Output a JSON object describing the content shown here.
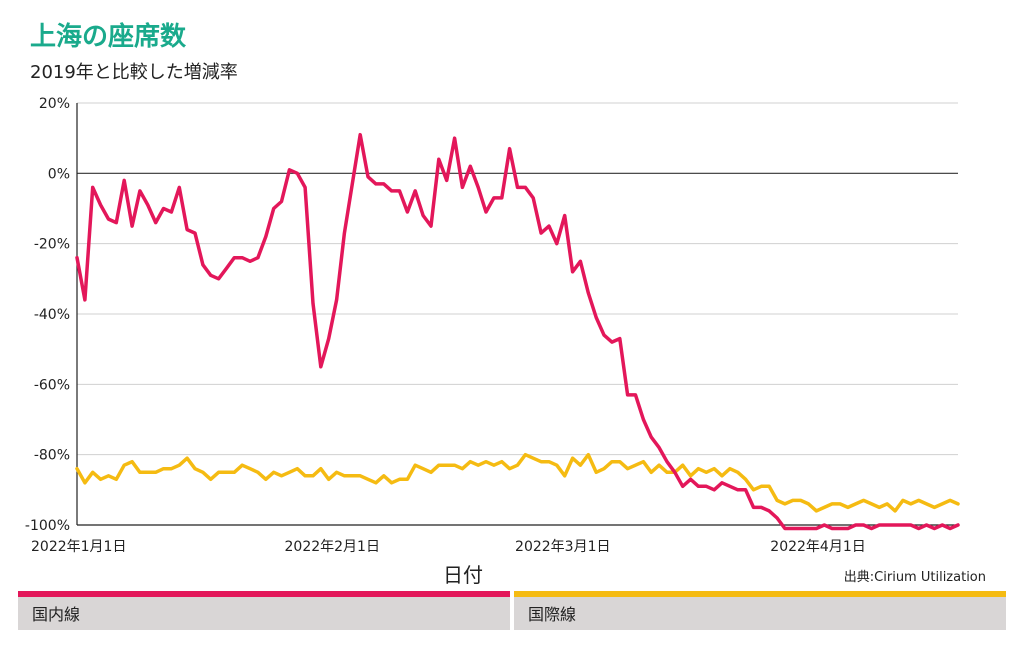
{
  "title": "上海の座席数",
  "subtitle": "2019年と比較した増減率",
  "source": "出典:Cirium Utilization",
  "colors": {
    "title": "#1aaa8c",
    "domestic": "#e3175a",
    "international": "#f5bb12",
    "legend_bg": "#d9d6d6"
  },
  "chart_data": {
    "type": "line",
    "xlabel": "日付",
    "ylabel": "",
    "ylim": [
      -100,
      20
    ],
    "yticks": [
      20,
      0,
      -20,
      -40,
      -60,
      -80,
      -100
    ],
    "ytick_labels": [
      "20%",
      "0%",
      "-20%",
      "-40%",
      "-60%",
      "-80%",
      "-100%"
    ],
    "x_start": "2022-01-01",
    "x_end": "2022-04-18",
    "xticks": [
      {
        "date": "2022-01-01",
        "label": "2022年1月1日"
      },
      {
        "date": "2022-02-01",
        "label": "2022年2月1日"
      },
      {
        "date": "2022-03-01",
        "label": "2022年3月1日"
      },
      {
        "date": "2022-04-01",
        "label": "2022年4月1日"
      }
    ],
    "grid": true,
    "series": [
      {
        "name": "国内線",
        "color": "#e3175a",
        "values": [
          -24,
          -36,
          -4,
          -9,
          -13,
          -14,
          -2,
          -15,
          -5,
          -9,
          -14,
          -10,
          -11,
          -4,
          -16,
          -17,
          -26,
          -29,
          -30,
          -27,
          -24,
          -24,
          -25,
          -24,
          -18,
          -10,
          -8,
          1,
          0,
          -4,
          -37,
          -55,
          -47,
          -36,
          -17,
          -3,
          11,
          -1,
          -3,
          -3,
          -5,
          -5,
          -11,
          -5,
          -12,
          -15,
          4,
          -2,
          10,
          -4,
          2,
          -4,
          -11,
          -7,
          -7,
          7,
          -4,
          -4,
          -7,
          -17,
          -15,
          -20,
          -12,
          -28,
          -25,
          -34,
          -41,
          -46,
          -48,
          -47,
          -63,
          -63,
          -70,
          -75,
          -78,
          -82,
          -85,
          -89,
          -87,
          -89,
          -89,
          -90,
          -88,
          -89,
          -90,
          -90,
          -95,
          -95,
          -96,
          -98,
          -101,
          -101,
          -101,
          -101,
          -101,
          -100,
          -101,
          -101,
          -101,
          -100,
          -100,
          -101,
          -100,
          -100,
          -100,
          -100,
          -100,
          -101,
          -100,
          -101,
          -100,
          -101,
          -100
        ]
      },
      {
        "name": "国際線",
        "color": "#f5bb12",
        "values": [
          -84,
          -88,
          -85,
          -87,
          -86,
          -87,
          -83,
          -82,
          -85,
          -85,
          -85,
          -84,
          -84,
          -83,
          -81,
          -84,
          -85,
          -87,
          -85,
          -85,
          -85,
          -83,
          -84,
          -85,
          -87,
          -85,
          -86,
          -85,
          -84,
          -86,
          -86,
          -84,
          -87,
          -85,
          -86,
          -86,
          -86,
          -87,
          -88,
          -86,
          -88,
          -87,
          -87,
          -83,
          -84,
          -85,
          -83,
          -83,
          -83,
          -84,
          -82,
          -83,
          -82,
          -83,
          -82,
          -84,
          -83,
          -80,
          -81,
          -82,
          -82,
          -83,
          -86,
          -81,
          -83,
          -80,
          -85,
          -84,
          -82,
          -82,
          -84,
          -83,
          -82,
          -85,
          -83,
          -85,
          -85,
          -83,
          -86,
          -84,
          -85,
          -84,
          -86,
          -84,
          -85,
          -87,
          -90,
          -89,
          -89,
          -93,
          -94,
          -93,
          -93,
          -94,
          -96,
          -95,
          -94,
          -94,
          -95,
          -94,
          -93,
          -94,
          -95,
          -94,
          -96,
          -93,
          -94,
          -93,
          -94,
          -95,
          -94,
          -93,
          -94
        ]
      }
    ]
  },
  "legend": [
    {
      "label": "国内線",
      "color": "#e3175a"
    },
    {
      "label": "国際線",
      "color": "#f5bb12"
    }
  ]
}
